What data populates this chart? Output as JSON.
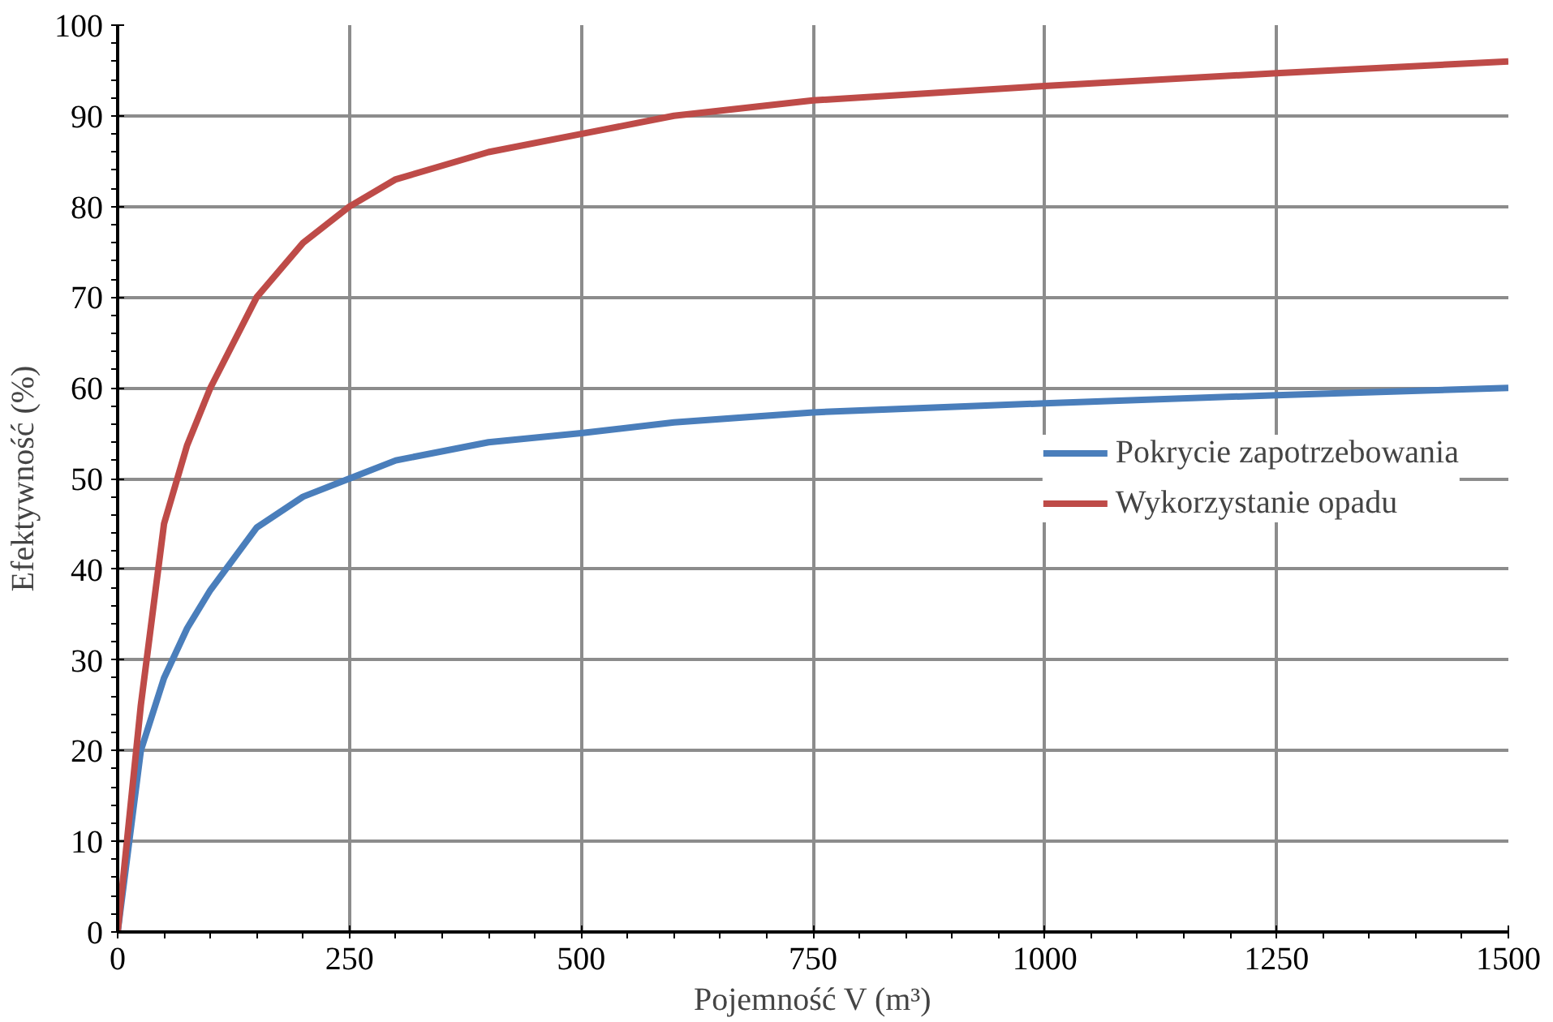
{
  "chart_data": {
    "type": "line",
    "xlabel": "Pojemność V (m³)",
    "ylabel": "Efektywność (%)",
    "x": [
      0,
      25,
      50,
      75,
      100,
      150,
      200,
      250,
      300,
      400,
      500,
      600,
      750,
      1000,
      1250,
      1500
    ],
    "series": [
      {
        "name": "Pokrycie zapotrzebowania",
        "color": "#4a7ebb",
        "values": [
          0,
          20,
          28,
          33.5,
          37.7,
          44.6,
          48,
          50,
          52,
          54,
          55,
          56.2,
          57.3,
          58.3,
          59.2,
          60
        ]
      },
      {
        "name": "Wykorzystanie opadu",
        "color": "#be4b48",
        "values": [
          0,
          25,
          45,
          53.7,
          60,
          70,
          76,
          80,
          83,
          86,
          88,
          90,
          91.7,
          93.3,
          94.7,
          96
        ]
      }
    ],
    "xlim": [
      0,
      1500
    ],
    "ylim": [
      0,
      100
    ],
    "xticks": [
      0,
      250,
      500,
      750,
      1000,
      1250,
      1500
    ],
    "yticks": [
      0,
      10,
      20,
      30,
      40,
      50,
      60,
      70,
      80,
      90,
      100
    ],
    "grid": true,
    "legend": "right",
    "marker": "none",
    "line_style": "solid"
  }
}
